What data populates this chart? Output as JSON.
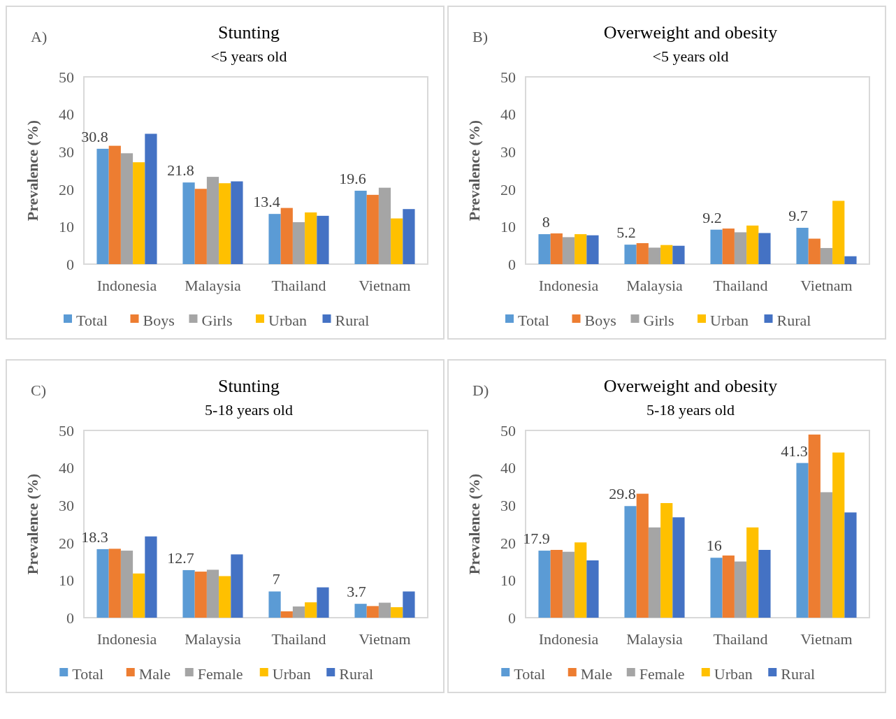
{
  "chart_data": [
    {
      "type": "bar",
      "title": "Stunting",
      "subtitle": "<5 years old",
      "annotations": [
        "A)"
      ],
      "ylabel": "Prevalence (%)",
      "categories": [
        "Indonesia",
        "Malaysia",
        "Thailand",
        "Vietnam"
      ],
      "ylim": [
        0,
        50
      ],
      "yticks": [
        0,
        10,
        20,
        30,
        40,
        50
      ],
      "grid": false,
      "legend": "bottom",
      "series": [
        {
          "name": "Total",
          "color": "#5b9bd5",
          "values": [
            30.8,
            21.8,
            13.4,
            19.6
          ],
          "value_labels": [
            "30.8",
            "21.8",
            "13.4",
            "19.6"
          ]
        },
        {
          "name": "Boys",
          "color": "#ed7d31",
          "values": [
            31.6,
            20.1,
            15.0,
            18.5
          ]
        },
        {
          "name": "Girls",
          "color": "#a5a5a5",
          "values": [
            29.6,
            23.3,
            11.2,
            20.4
          ]
        },
        {
          "name": "Urban",
          "color": "#ffc000",
          "values": [
            27.2,
            21.6,
            13.8,
            12.2
          ]
        },
        {
          "name": "Rural",
          "color": "#4472c4",
          "values": [
            34.8,
            22.1,
            12.9,
            14.7
          ]
        }
      ]
    },
    {
      "type": "bar",
      "title": "Overweight and obesity",
      "subtitle": "<5 years old",
      "annotations": [
        "B)"
      ],
      "ylabel": "Prevalence (%)",
      "categories": [
        "Indonesia",
        "Malaysia",
        "Thailand",
        "Vietnam"
      ],
      "ylim": [
        0,
        50
      ],
      "yticks": [
        0,
        10,
        20,
        30,
        40,
        50
      ],
      "grid": false,
      "legend": "bottom",
      "series": [
        {
          "name": "Total",
          "color": "#5b9bd5",
          "values": [
            8,
            5.2,
            9.2,
            9.7
          ],
          "value_labels": [
            "8",
            "5.2",
            "9.2",
            "9.7"
          ]
        },
        {
          "name": "Boys",
          "color": "#ed7d31",
          "values": [
            8.2,
            5.6,
            9.5,
            6.8
          ]
        },
        {
          "name": "Girls",
          "color": "#a5a5a5",
          "values": [
            7.2,
            4.4,
            8.5,
            4.3
          ]
        },
        {
          "name": "Urban",
          "color": "#ffc000",
          "values": [
            8.0,
            5.1,
            10.3,
            16.9
          ]
        },
        {
          "name": "Rural",
          "color": "#4472c4",
          "values": [
            7.7,
            4.9,
            8.3,
            2.1
          ]
        }
      ]
    },
    {
      "type": "bar",
      "title": "Stunting",
      "subtitle": "5-18 years old",
      "annotations": [
        "C)"
      ],
      "ylabel": "Prevalence (%)",
      "categories": [
        "Indonesia",
        "Malaysia",
        "Thailand",
        "Vietnam"
      ],
      "ylim": [
        0,
        50
      ],
      "yticks": [
        0,
        10,
        20,
        30,
        40,
        50
      ],
      "grid": false,
      "legend": "bottom",
      "series": [
        {
          "name": "Total",
          "color": "#5b9bd5",
          "values": [
            18.3,
            12.7,
            7,
            3.7
          ],
          "value_labels": [
            "18.3",
            "12.7",
            "7",
            "3.7"
          ]
        },
        {
          "name": "Male",
          "color": "#ed7d31",
          "values": [
            18.4,
            12.3,
            1.7,
            3.1
          ]
        },
        {
          "name": "Female",
          "color": "#a5a5a5",
          "values": [
            17.9,
            12.8,
            3.0,
            4.0
          ]
        },
        {
          "name": "Urban",
          "color": "#ffc000",
          "values": [
            11.8,
            11.1,
            4.1,
            2.8
          ]
        },
        {
          "name": "Rural",
          "color": "#4472c4",
          "values": [
            21.7,
            16.9,
            8.1,
            7.0
          ]
        }
      ]
    },
    {
      "type": "bar",
      "title": "Overweight and obesity",
      "subtitle": "5-18 years old",
      "annotations": [
        "D)"
      ],
      "ylabel": "Prevalence (%)",
      "categories": [
        "Indonesia",
        "Malaysia",
        "Thailand",
        "Vietnam"
      ],
      "ylim": [
        0,
        50
      ],
      "yticks": [
        0,
        10,
        20,
        30,
        40,
        50
      ],
      "grid": false,
      "legend": "bottom",
      "series": [
        {
          "name": "Total",
          "color": "#5b9bd5",
          "values": [
            17.9,
            29.8,
            16,
            41.3
          ],
          "value_labels": [
            "17.9",
            "29.8",
            "16",
            "41.3"
          ]
        },
        {
          "name": "Male",
          "color": "#ed7d31",
          "values": [
            18.1,
            33.1,
            16.6,
            48.9
          ]
        },
        {
          "name": "Female",
          "color": "#a5a5a5",
          "values": [
            17.6,
            24.1,
            15.0,
            33.5
          ]
        },
        {
          "name": "Urban",
          "color": "#ffc000",
          "values": [
            20.1,
            30.6,
            24.1,
            44.1
          ]
        },
        {
          "name": "Rural",
          "color": "#4472c4",
          "values": [
            15.3,
            26.8,
            18.1,
            28.1
          ]
        }
      ]
    }
  ]
}
